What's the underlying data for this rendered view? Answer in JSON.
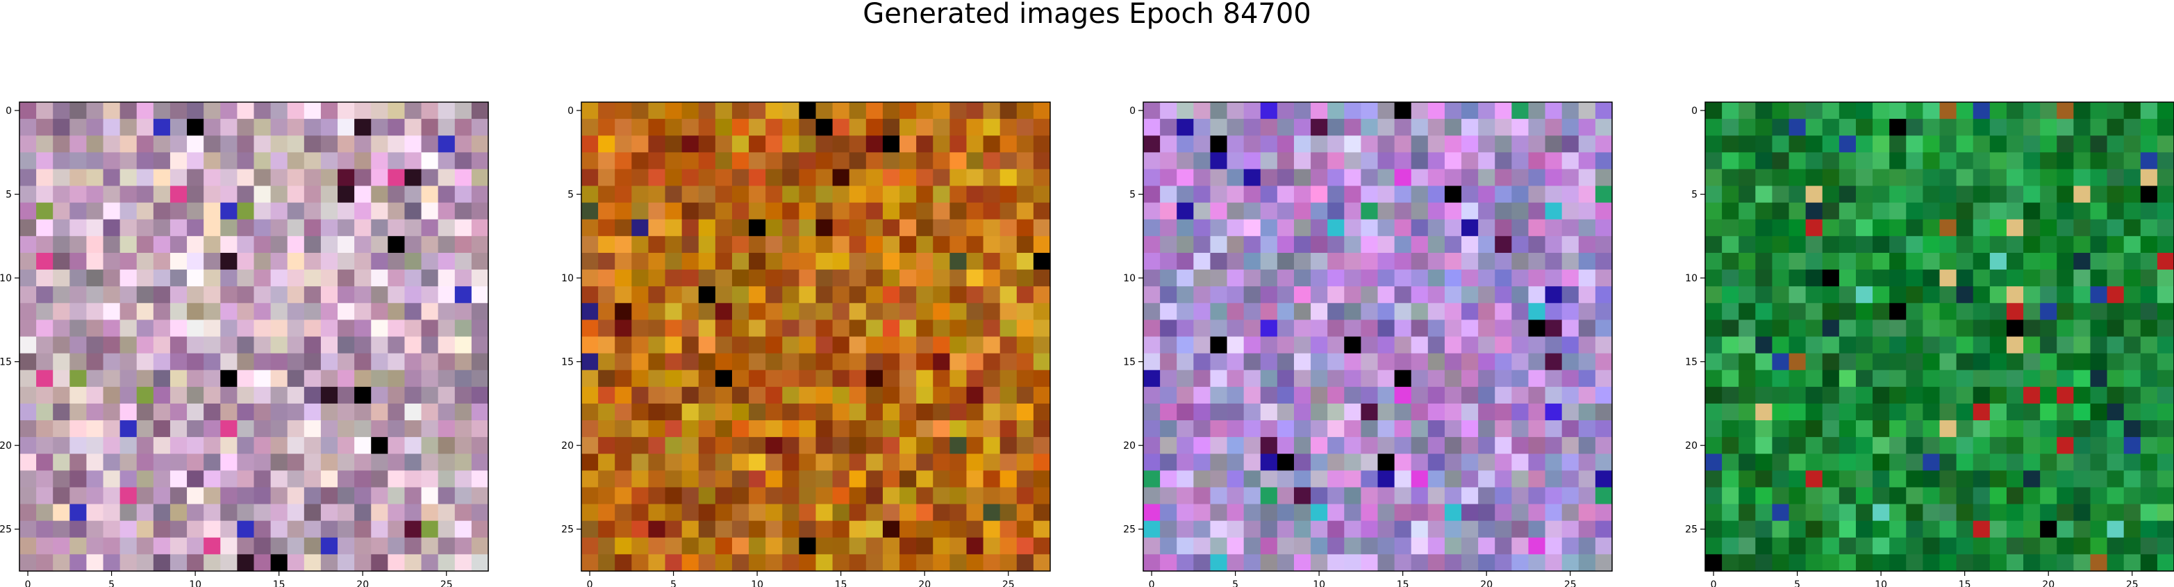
{
  "suptitle": "Generated images Epoch 84700",
  "chart_data": [
    {
      "type": "heatmap",
      "title": "",
      "xlabel": "",
      "ylabel": "",
      "grid": false,
      "shape": [
        28,
        28
      ],
      "xlim": [
        -0.5,
        27.5
      ],
      "ylim": [
        27.5,
        -0.5
      ],
      "xticks": [
        0,
        5,
        10,
        15,
        20,
        25
      ],
      "yticks": [
        0,
        5,
        10,
        15,
        20,
        25
      ],
      "palette": [
        "#c8a8c8",
        "#b89cb8",
        "#d8c0d8",
        "#a888a8",
        "#e8d0e0",
        "#9c7c9c",
        "#c0b0a0",
        "#d0a8c8",
        "#8c6c8c",
        "#e0c8c8"
      ],
      "accents": [
        "#000000",
        "#2a1020",
        "#5a1030",
        "#3030c0",
        "#e04090",
        "#80a040",
        "#ffe0c0",
        "#f0f0f0"
      ]
    },
    {
      "type": "heatmap",
      "title": "",
      "xlabel": "",
      "ylabel": "",
      "grid": false,
      "shape": [
        28,
        28
      ],
      "xlim": [
        -0.5,
        27.5
      ],
      "ylim": [
        27.5,
        -0.5
      ],
      "xticks": [
        0,
        5,
        10,
        15,
        20,
        25
      ],
      "yticks": [
        0,
        5,
        10,
        15,
        20,
        25
      ],
      "palette": [
        "#c07010",
        "#b05a08",
        "#d09010",
        "#a04808",
        "#c8a020",
        "#b88018",
        "#904010",
        "#d08030",
        "#a86020",
        "#c05020"
      ],
      "accents": [
        "#000000",
        "#400800",
        "#701010",
        "#e06010",
        "#405030",
        "#2a2080",
        "#f0a040"
      ]
    },
    {
      "type": "heatmap",
      "title": "",
      "xlabel": "",
      "ylabel": "",
      "grid": false,
      "shape": [
        28,
        28
      ],
      "xlim": [
        -0.5,
        27.5
      ],
      "ylim": [
        27.5,
        -0.5
      ],
      "xticks": [
        0,
        5,
        10,
        15,
        20,
        25
      ],
      "yticks": [
        0,
        5,
        10,
        15,
        20,
        25
      ],
      "palette": [
        "#a080d0",
        "#c090e0",
        "#8070c0",
        "#d0a0e0",
        "#9090d0",
        "#b070c0",
        "#a0a0b0",
        "#c8b8e8",
        "#8090b0",
        "#d080d0"
      ],
      "accents": [
        "#000000",
        "#2010a0",
        "#4020e0",
        "#30c0d0",
        "#e040e0",
        "#20a060",
        "#501040"
      ]
    },
    {
      "type": "heatmap",
      "title": "",
      "xlabel": "",
      "ylabel": "",
      "grid": false,
      "shape": [
        28,
        28
      ],
      "xlim": [
        -0.5,
        27.5
      ],
      "ylim": [
        27.5,
        -0.5
      ],
      "xticks": [
        0,
        5,
        10,
        15,
        20,
        25
      ],
      "yticks": [
        0,
        5,
        10,
        15,
        20,
        25
      ],
      "palette": [
        "#108030",
        "#1a9040",
        "#0a6a20",
        "#20a040",
        "#30a050",
        "#087028",
        "#40b060",
        "#1c7838",
        "#2a9848",
        "#0e5e22"
      ],
      "accents": [
        "#000000",
        "#103040",
        "#e0c080",
        "#a06020",
        "#c02020",
        "#2040a0",
        "#60d0c0"
      ]
    }
  ]
}
